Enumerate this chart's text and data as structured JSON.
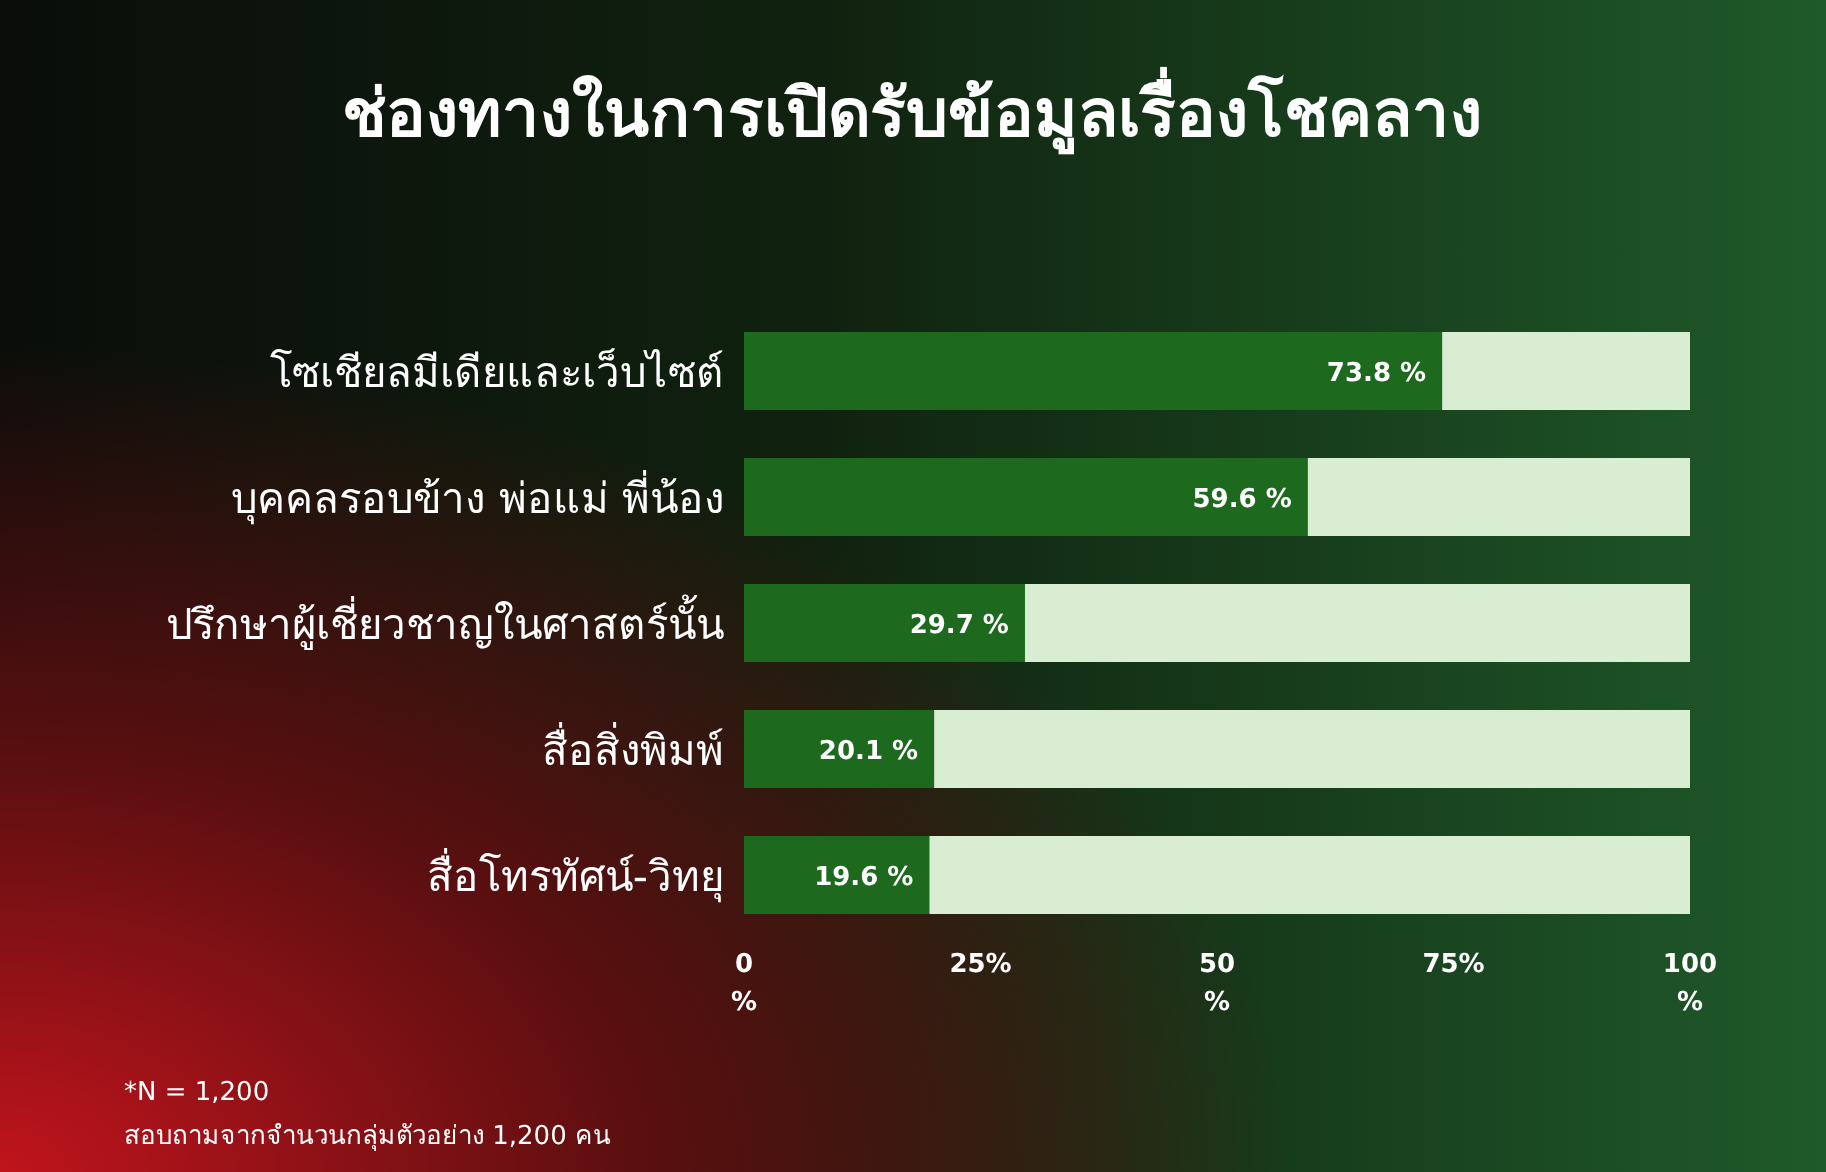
{
  "chart_data": {
    "type": "bar",
    "orientation": "horizontal",
    "stacked": true,
    "title": "ช่องทางในการเปิดรับข้อมูลเรื่องโชคลาง",
    "categories": [
      "โซเชียลมีเดียและเว็บไซต์",
      "บุคคลรอบข้าง พ่อแม่ พี่น้อง",
      "ปรึกษาผู้เชี่ยวชาญในศาสตร์นั้น",
      "สื่อสิ่งพิมพ์",
      "สื่อโทรทัศน์-วิทยุ"
    ],
    "series": [
      {
        "color": "#1d6a1f",
        "values": [
          73.8,
          59.6,
          29.7,
          20.1,
          19.6
        ],
        "value_labels": [
          "73.8 %",
          "59.6 %",
          "29.7 %",
          "20.1 %",
          "19.6 %"
        ]
      },
      {
        "color": "#d9edd2",
        "values": [
          26.2,
          40.4,
          70.3,
          79.9,
          80.4
        ]
      }
    ],
    "xlim": [
      0,
      100
    ],
    "xticks": [
      {
        "value": 0,
        "label": "0 %"
      },
      {
        "value": 25,
        "label": "25%"
      },
      {
        "value": 50,
        "label": "50 %"
      },
      {
        "value": 75,
        "label": "75%"
      },
      {
        "value": 100,
        "label": "100 %"
      }
    ],
    "annotations": [
      "*N = 1,200",
      "สอบถามจากจำนวนกลุ่มตัวอย่าง  1,200 คน"
    ]
  }
}
